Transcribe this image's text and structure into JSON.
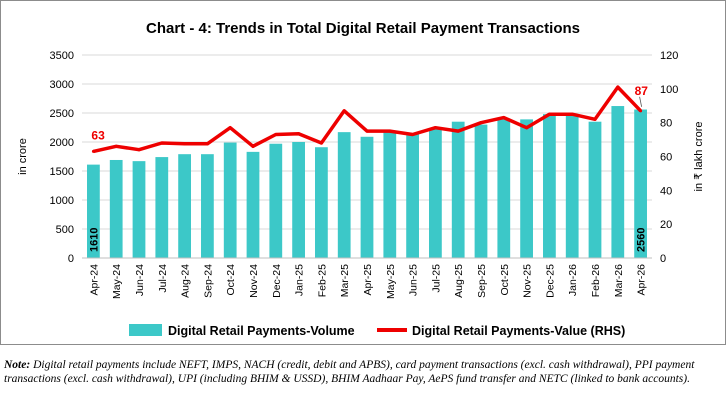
{
  "chart_data": {
    "type": "bar",
    "title": "Chart - 4: Trends in Total Digital Retail Payment Transactions",
    "categories": [
      "Apr-24",
      "May-24",
      "Jun-24",
      "Jul-24",
      "Aug-24",
      "Sep-24",
      "Oct-24",
      "Nov-24",
      "Dec-24",
      "Jan-25",
      "Feb-25",
      "Mar-25",
      "Apr-25",
      "May-25",
      "Jun-25",
      "Jul-25",
      "Aug-25",
      "Sep-25",
      "Oct-25",
      "Nov-25",
      "Dec-25",
      "Jan-26",
      "Feb-26",
      "Mar-26",
      "Apr-26"
    ],
    "series": [
      {
        "name": "Digital Retail Payments-Volume",
        "type": "bar",
        "axis": "left",
        "color": "#3cc8c8",
        "values": [
          1610,
          1690,
          1670,
          1740,
          1790,
          1790,
          1990,
          1830,
          1970,
          2000,
          1910,
          2170,
          2090,
          2180,
          2150,
          2230,
          2350,
          2300,
          2400,
          2390,
          2480,
          2470,
          2350,
          2620,
          2560
        ]
      },
      {
        "name": "Digital Retail Payments-Value (RHS)",
        "type": "line",
        "axis": "right",
        "color": "#ee0000",
        "values": [
          63,
          66,
          64,
          68,
          67.5,
          67.5,
          77,
          66,
          73,
          73.5,
          68,
          87,
          75,
          75,
          73,
          77,
          75,
          80,
          83,
          77,
          85,
          85,
          82,
          101,
          87
        ]
      }
    ],
    "data_labels": {
      "first_bar": "1610",
      "last_bar": "2560",
      "first_line": "63",
      "last_line": "87"
    },
    "ylabel": "in crore",
    "y2label": "in ₹ lakh crore",
    "ylim": [
      0,
      3500
    ],
    "y2lim": [
      0,
      120
    ],
    "yticks": [
      "0",
      "500",
      "1000",
      "1500",
      "2000",
      "2500",
      "3000",
      "3500"
    ],
    "y2ticks": [
      "0",
      "20",
      "40",
      "60",
      "80",
      "100",
      "120"
    ],
    "grid": true,
    "legend": "bottom"
  },
  "note": {
    "label": "Note:",
    "text": " Digital retail payments include NEFT, IMPS, NACH (credit, debit and APBS), card payment transactions (excl. cash withdrawal), PPI payment transactions (excl. cash withdrawal), UPI (including BHIM & USSD), BHIM Aadhaar Pay, AePS fund transfer and NETC (linked to bank accounts)."
  }
}
